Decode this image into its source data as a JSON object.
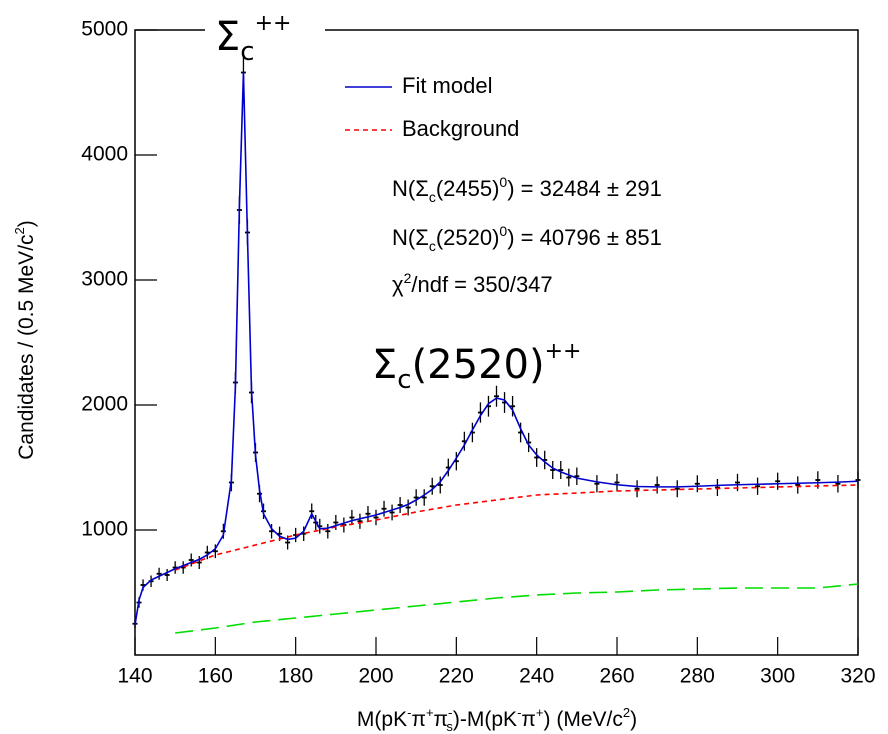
{
  "chart_data": {
    "type": "line",
    "xlabel": [
      "M(pK",
      "-",
      "π",
      "+",
      "π",
      "-",
      "s",
      ")-M(pK",
      "-",
      "π",
      "+",
      ") (MeV/c",
      "2",
      ")"
    ],
    "ylabel": [
      "Candidates / (0.5 MeV/c",
      "2",
      ")"
    ],
    "annotations": [
      [
        "Σ",
        "c",
        "++"
      ],
      [
        "Σ",
        "c",
        "(2520)",
        "++"
      ]
    ],
    "stats": [
      [
        "N(Σ",
        "c",
        "(2455)",
        "0",
        ") = 32484 ± 291"
      ],
      [
        "N(Σ",
        "c",
        "(2520)",
        "0",
        ") = 40796 ± 851"
      ],
      [
        "χ",
        "2",
        "/ndf = 350/347"
      ]
    ],
    "xlim": [
      140,
      320
    ],
    "ylim": [
      0,
      5000
    ],
    "xticks": [
      140,
      160,
      180,
      200,
      220,
      240,
      260,
      280,
      300,
      320
    ],
    "yticks": [
      1000,
      2000,
      3000,
      4000,
      5000
    ],
    "series": [
      {
        "color": "#000000",
        "x": [
          140,
          141,
          142,
          144,
          146,
          148,
          150,
          152,
          154,
          156,
          158,
          160,
          162,
          164,
          165,
          166,
          167,
          168,
          169,
          170,
          171,
          172,
          174,
          176,
          178,
          180,
          182,
          184,
          185,
          186,
          188,
          190,
          192,
          194,
          196,
          198,
          200,
          202,
          204,
          206,
          208,
          210,
          212,
          214,
          216,
          218,
          220,
          222,
          224,
          226,
          228,
          230,
          232,
          234,
          236,
          238,
          240,
          242,
          244,
          246,
          248,
          250,
          255,
          260,
          265,
          270,
          275,
          280,
          285,
          290,
          295,
          300,
          305,
          310,
          315,
          320
        ],
        "values": [
          250,
          420,
          560,
          590,
          650,
          640,
          700,
          700,
          760,
          740,
          820,
          830,
          990,
          1380,
          2180,
          3560,
          4660,
          3380,
          2100,
          1620,
          1290,
          1150,
          990,
          970,
          900,
          960,
          970,
          1150,
          1060,
          1030,
          990,
          1060,
          1040,
          1100,
          1070,
          1130,
          1100,
          1170,
          1140,
          1200,
          1180,
          1260,
          1260,
          1350,
          1360,
          1500,
          1550,
          1710,
          1780,
          1940,
          1990,
          2070,
          2020,
          1990,
          1780,
          1700,
          1580,
          1560,
          1480,
          1480,
          1420,
          1430,
          1370,
          1380,
          1330,
          1360,
          1330,
          1370,
          1340,
          1380,
          1350,
          1390,
          1360,
          1400,
          1370,
          1400
        ],
        "errors": [
          35,
          42,
          45,
          46,
          48,
          48,
          50,
          50,
          52,
          52,
          54,
          55,
          60,
          70,
          85,
          110,
          125,
          105,
          85,
          75,
          68,
          62,
          58,
          57,
          56,
          57,
          58,
          62,
          60,
          59,
          58,
          60,
          60,
          61,
          61,
          62,
          62,
          63,
          63,
          64,
          64,
          66,
          66,
          68,
          68,
          71,
          73,
          76,
          78,
          81,
          83,
          84,
          83,
          82,
          79,
          77,
          75,
          74,
          72,
          72,
          71,
          70,
          69,
          69,
          68,
          68,
          68,
          68,
          68,
          69,
          69,
          69,
          69,
          70,
          70,
          70
        ]
      },
      {
        "name": "Fit model",
        "color": "#0000cc",
        "x": [
          140,
          141,
          142,
          144,
          146,
          148,
          150,
          152,
          154,
          156,
          158,
          160,
          162,
          164,
          165,
          166,
          167,
          168,
          169,
          170,
          171,
          172,
          174,
          176,
          178,
          180,
          182,
          184,
          185,
          186,
          188,
          190,
          192,
          194,
          196,
          198,
          200,
          202,
          204,
          206,
          208,
          210,
          212,
          214,
          216,
          218,
          220,
          222,
          224,
          226,
          228,
          230,
          232,
          234,
          236,
          238,
          240,
          242,
          244,
          246,
          248,
          250,
          255,
          260,
          265,
          270,
          275,
          280,
          285,
          290,
          295,
          300,
          305,
          310,
          315,
          320
        ],
        "values": [
          240,
          440,
          540,
          600,
          630,
          660,
          690,
          715,
          740,
          765,
          800,
          850,
          960,
          1400,
          2150,
          3600,
          4660,
          3350,
          2120,
          1600,
          1320,
          1130,
          1010,
          950,
          925,
          935,
          990,
          1130,
          1070,
          1010,
          1015,
          1035,
          1055,
          1075,
          1090,
          1105,
          1120,
          1140,
          1160,
          1180,
          1205,
          1240,
          1280,
          1325,
          1385,
          1475,
          1575,
          1680,
          1800,
          1915,
          2010,
          2055,
          2040,
          1960,
          1810,
          1680,
          1600,
          1545,
          1495,
          1465,
          1440,
          1415,
          1385,
          1362,
          1348,
          1345,
          1345,
          1350,
          1357,
          1362,
          1366,
          1370,
          1374,
          1378,
          1383,
          1390
        ]
      },
      {
        "name": "Background",
        "color": "#ff0000",
        "dash": "dashed",
        "x": [
          150,
          160,
          170,
          180,
          190,
          200,
          210,
          220,
          230,
          240,
          250,
          260,
          270,
          280,
          290,
          300,
          310,
          320
        ],
        "values": [
          680,
          800,
          880,
          960,
          1024,
          1080,
          1144,
          1200,
          1240,
          1280,
          1296,
          1312,
          1320,
          1328,
          1336,
          1344,
          1352,
          1360
        ]
      },
      {
        "color": "#00dd00",
        "dash": "long-dashed",
        "x": [
          150,
          160,
          170,
          180,
          190,
          200,
          210,
          220,
          230,
          240,
          250,
          260,
          270,
          280,
          290,
          300,
          310,
          320
        ],
        "values": [
          176,
          216,
          264,
          296,
          328,
          360,
          392,
          424,
          456,
          480,
          496,
          504,
          520,
          528,
          536,
          536,
          536,
          568
        ]
      }
    ]
  }
}
